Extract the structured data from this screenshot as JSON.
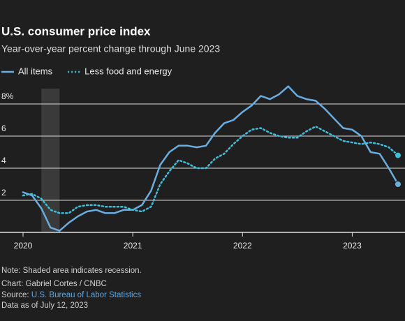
{
  "chart_data": {
    "type": "line",
    "title": "U.S. consumer price index",
    "subtitle": "Year-over-year percent change through June 2023",
    "x": [
      2020,
      2020.083,
      2020.167,
      2020.25,
      2020.333,
      2020.417,
      2020.5,
      2020.583,
      2020.667,
      2020.75,
      2020.833,
      2020.917,
      2021,
      2021.083,
      2021.167,
      2021.25,
      2021.333,
      2021.417,
      2021.5,
      2021.583,
      2021.667,
      2021.75,
      2021.833,
      2021.917,
      2022,
      2022.083,
      2022.167,
      2022.25,
      2022.333,
      2022.417,
      2022.5,
      2022.583,
      2022.667,
      2022.75,
      2022.833,
      2022.917,
      2023,
      2023.083,
      2023.167,
      2023.25,
      2023.333,
      2023.417
    ],
    "series": [
      {
        "name": "All items",
        "color": "#6aaee0",
        "style": "solid",
        "values": [
          2.5,
          2.3,
          1.5,
          0.3,
          0.1,
          0.6,
          1.0,
          1.3,
          1.4,
          1.2,
          1.2,
          1.4,
          1.4,
          1.7,
          2.6,
          4.2,
          5.0,
          5.4,
          5.4,
          5.3,
          5.4,
          6.2,
          6.8,
          7.0,
          7.5,
          7.9,
          8.5,
          8.3,
          8.6,
          9.1,
          8.5,
          8.3,
          8.2,
          7.7,
          7.1,
          6.5,
          6.4,
          6.0,
          5.0,
          4.9,
          4.0,
          3.0
        ]
      },
      {
        "name": "Less food and energy",
        "color": "#3cc0dc",
        "style": "dotted",
        "values": [
          2.3,
          2.4,
          2.1,
          1.4,
          1.2,
          1.2,
          1.6,
          1.7,
          1.7,
          1.6,
          1.6,
          1.6,
          1.4,
          1.3,
          1.6,
          3.0,
          3.8,
          4.5,
          4.3,
          4.0,
          4.0,
          4.6,
          4.9,
          5.5,
          6.0,
          6.4,
          6.5,
          6.2,
          6.0,
          5.9,
          5.9,
          6.3,
          6.6,
          6.3,
          6.0,
          5.7,
          5.6,
          5.5,
          5.6,
          5.5,
          5.3,
          4.8
        ]
      }
    ],
    "recession": [
      2020.167,
      2020.333
    ],
    "xlim": [
      2020,
      2023.43
    ],
    "xticks": [
      2020,
      2021,
      2022,
      2023
    ],
    "ylim": [
      0,
      8.8
    ],
    "yticks": [
      2,
      4,
      6,
      {
        "value": 8,
        "label": "8%"
      }
    ],
    "grid": true,
    "note": "Note: Shaded area indicates recession.",
    "credit": "Chart: Gabriel Cortes / CNBC",
    "source_prefix": "Source:",
    "source_link": "U.S. Bureau of Labor Statistics",
    "data_date": "Data as of July 12, 2023"
  }
}
